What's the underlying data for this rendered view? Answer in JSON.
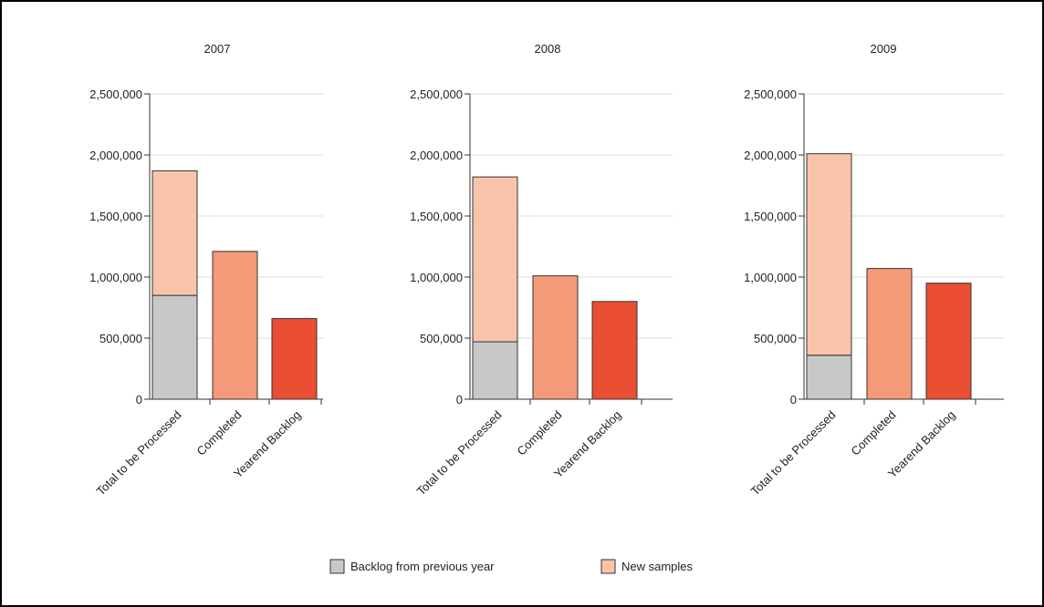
{
  "chart_data": [
    {
      "type": "bar",
      "title": "2007",
      "categories": [
        "Total to be Processed",
        "Completed",
        "Yearend Backlog"
      ],
      "ylim": [
        0,
        2500000
      ],
      "yticks": [
        "0",
        "500,000",
        "1,000,000",
        "1,500,000",
        "2,000,000",
        "2,500,000"
      ],
      "grid": true,
      "stacked": {
        "category": "Total to be Processed",
        "backlog": 850000,
        "new": 1020000
      },
      "values": {
        "Completed": 1210000,
        "Yearend Backlog": 660000
      }
    },
    {
      "type": "bar",
      "title": "2008",
      "categories": [
        "Total to be Processed",
        "Completed",
        "Yearend Backlog"
      ],
      "ylim": [
        0,
        2500000
      ],
      "yticks": [
        "0",
        "500,000",
        "1,000,000",
        "1,500,000",
        "2,000,000",
        "2,500,000"
      ],
      "grid": true,
      "stacked": {
        "category": "Total to be Processed",
        "backlog": 470000,
        "new": 1350000
      },
      "values": {
        "Completed": 1010000,
        "Yearend Backlog": 800000
      }
    },
    {
      "type": "bar",
      "title": "2009",
      "categories": [
        "Total to be Processed",
        "Completed",
        "Yearend Backlog"
      ],
      "ylim": [
        0,
        2500000
      ],
      "yticks": [
        "0",
        "500,000",
        "1,000,000",
        "1,500,000",
        "2,000,000",
        "2,500,000"
      ],
      "grid": true,
      "stacked": {
        "category": "Total to be Processed",
        "backlog": 360000,
        "new": 1650000
      },
      "values": {
        "Completed": 1070000,
        "Yearend Backlog": 950000
      }
    }
  ],
  "legend": {
    "placement": "bottom-center",
    "items": [
      {
        "label": "Backlog from previous year",
        "color": "#c8c8c8"
      },
      {
        "label": "New samples",
        "color": "#f8c4aa"
      }
    ]
  },
  "colors": {
    "backlog": "#c8c8c8",
    "new_samples": "#f8c4aa",
    "completed": "#f59a78",
    "yearend_backlog": "#ea4e33"
  }
}
